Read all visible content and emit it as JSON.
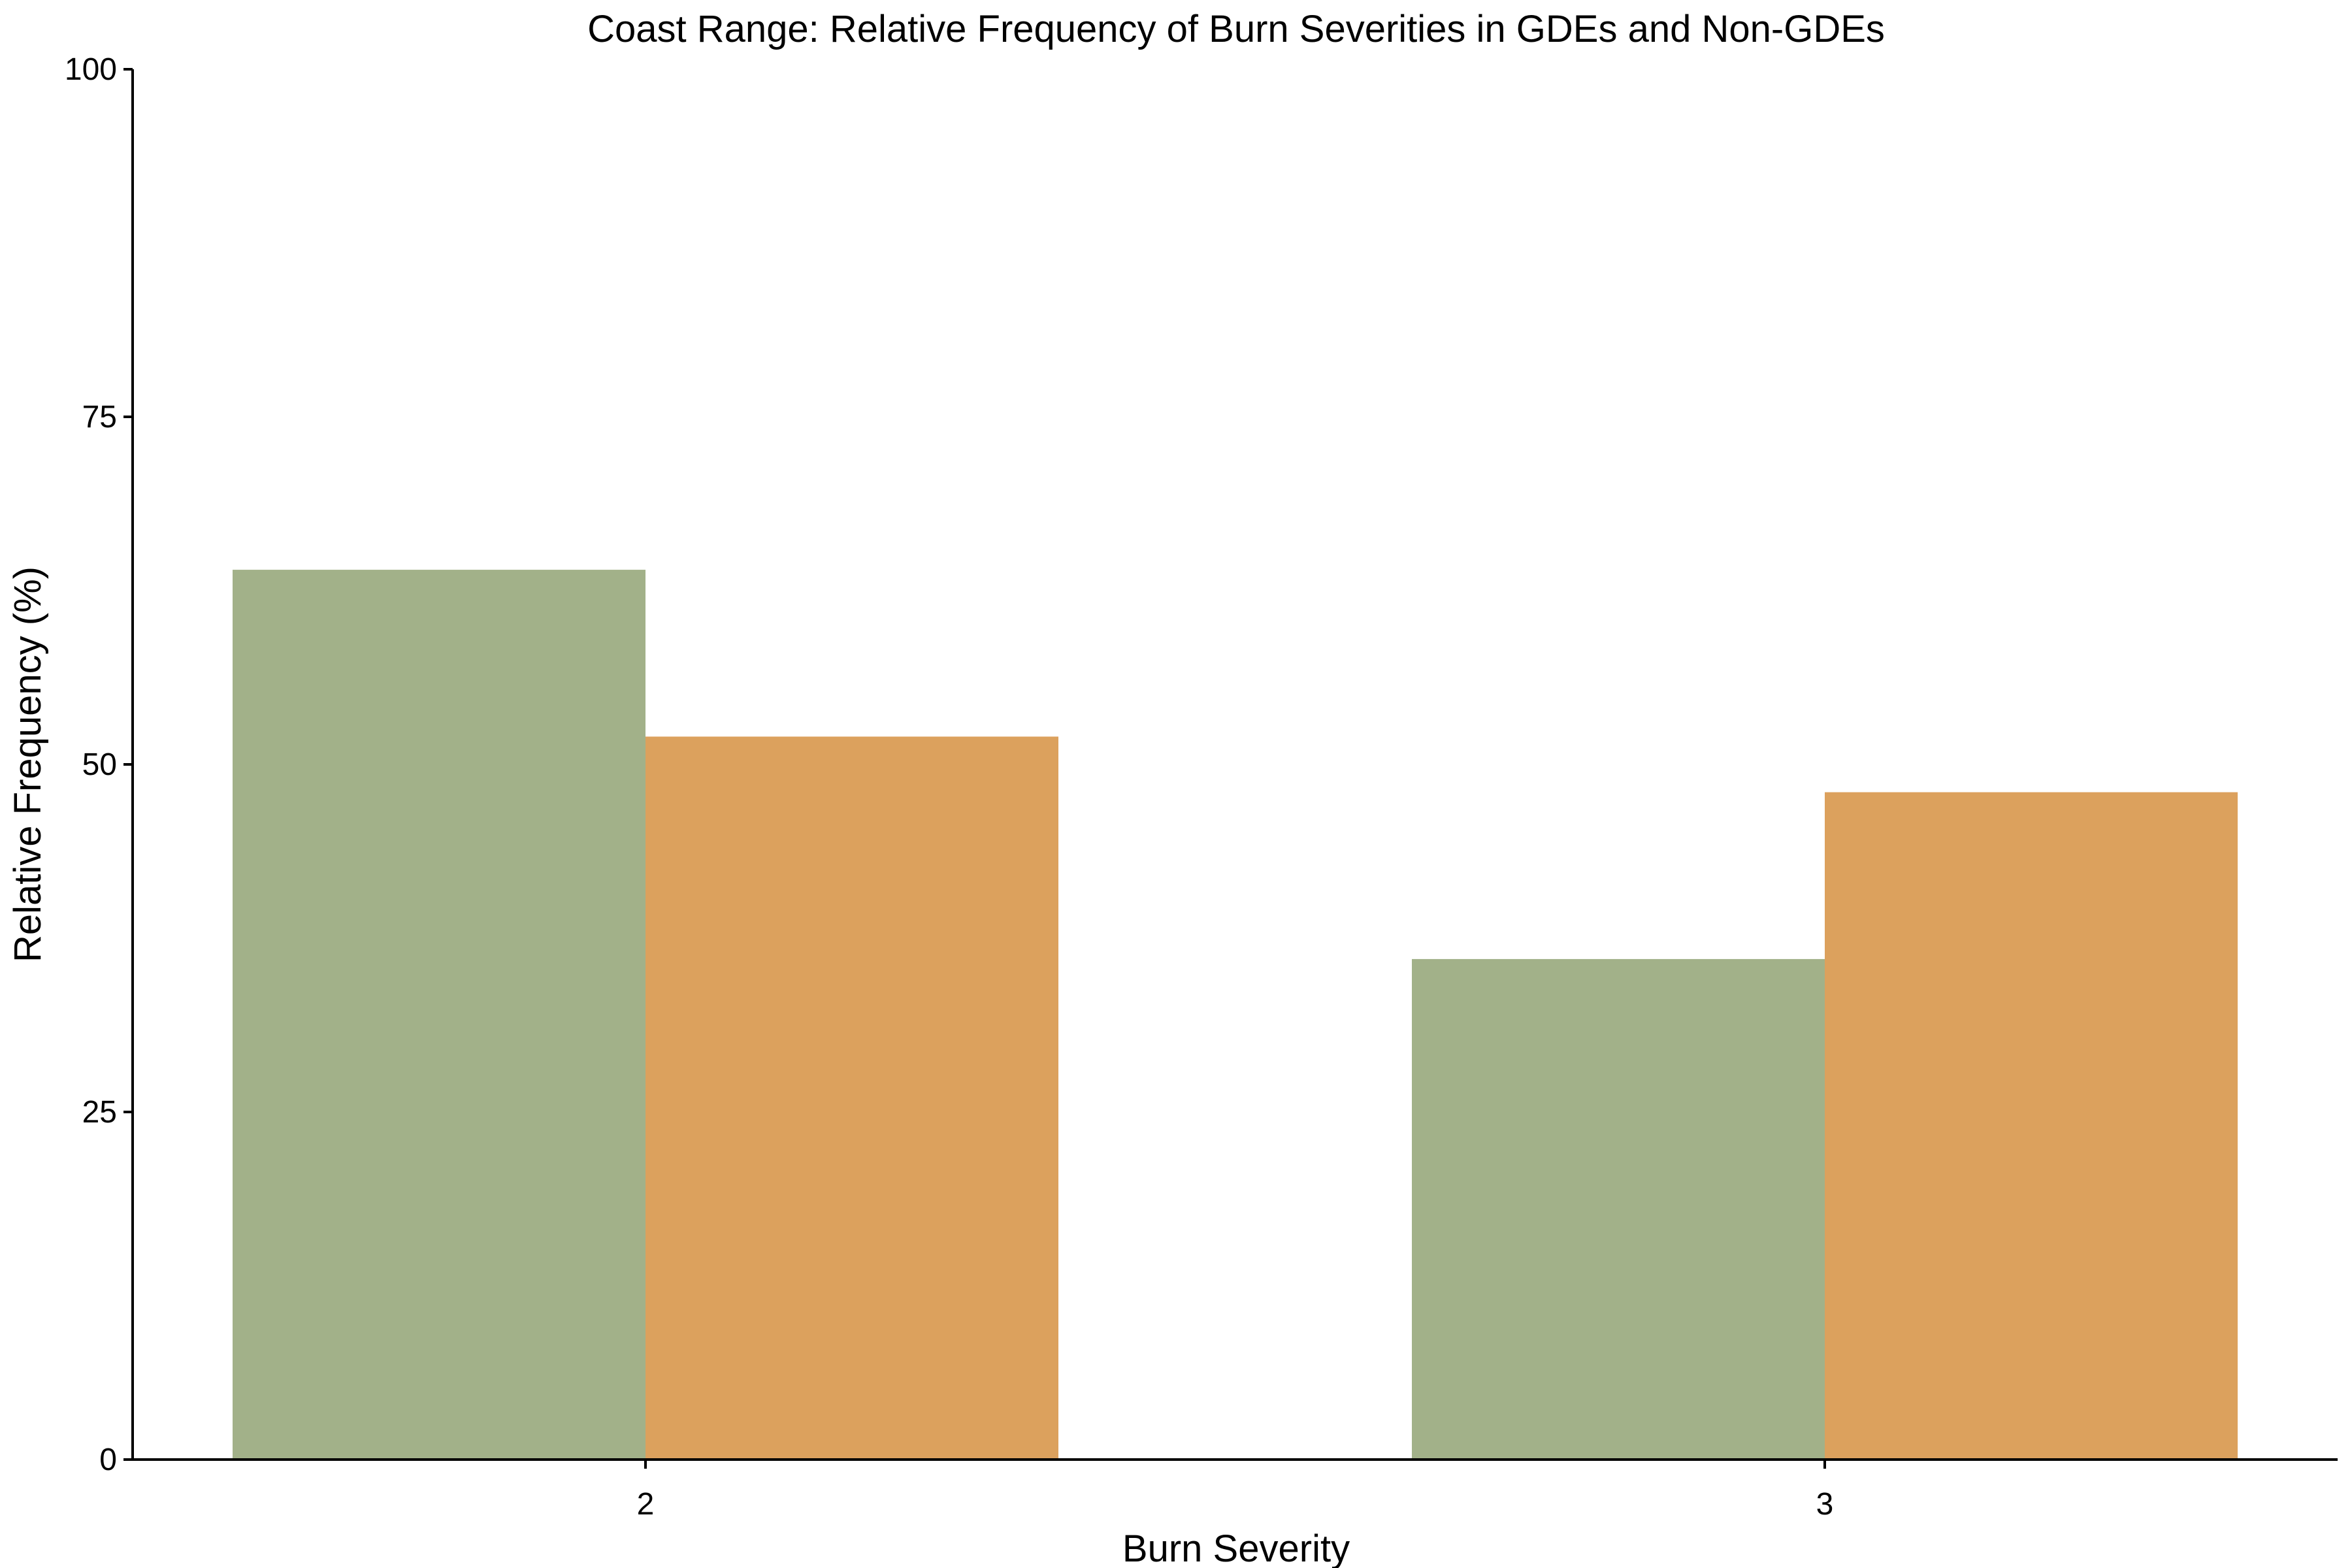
{
  "chart_data": {
    "type": "bar",
    "title": "Coast Range: Relative Frequency of Burn Severities in GDEs and Non-GDEs",
    "xlabel": "Burn Severity",
    "ylabel": "Relative Frequency (%)",
    "categories": [
      "2",
      "3"
    ],
    "series": [
      {
        "color": "#a2b189",
        "values": [
          64,
          36
        ]
      },
      {
        "color": "#dca15d",
        "values": [
          52,
          48
        ]
      }
    ],
    "ylim": [
      0,
      100
    ],
    "yticks": [
      0,
      25,
      50,
      75,
      100
    ],
    "grid": false,
    "legend": "none"
  }
}
